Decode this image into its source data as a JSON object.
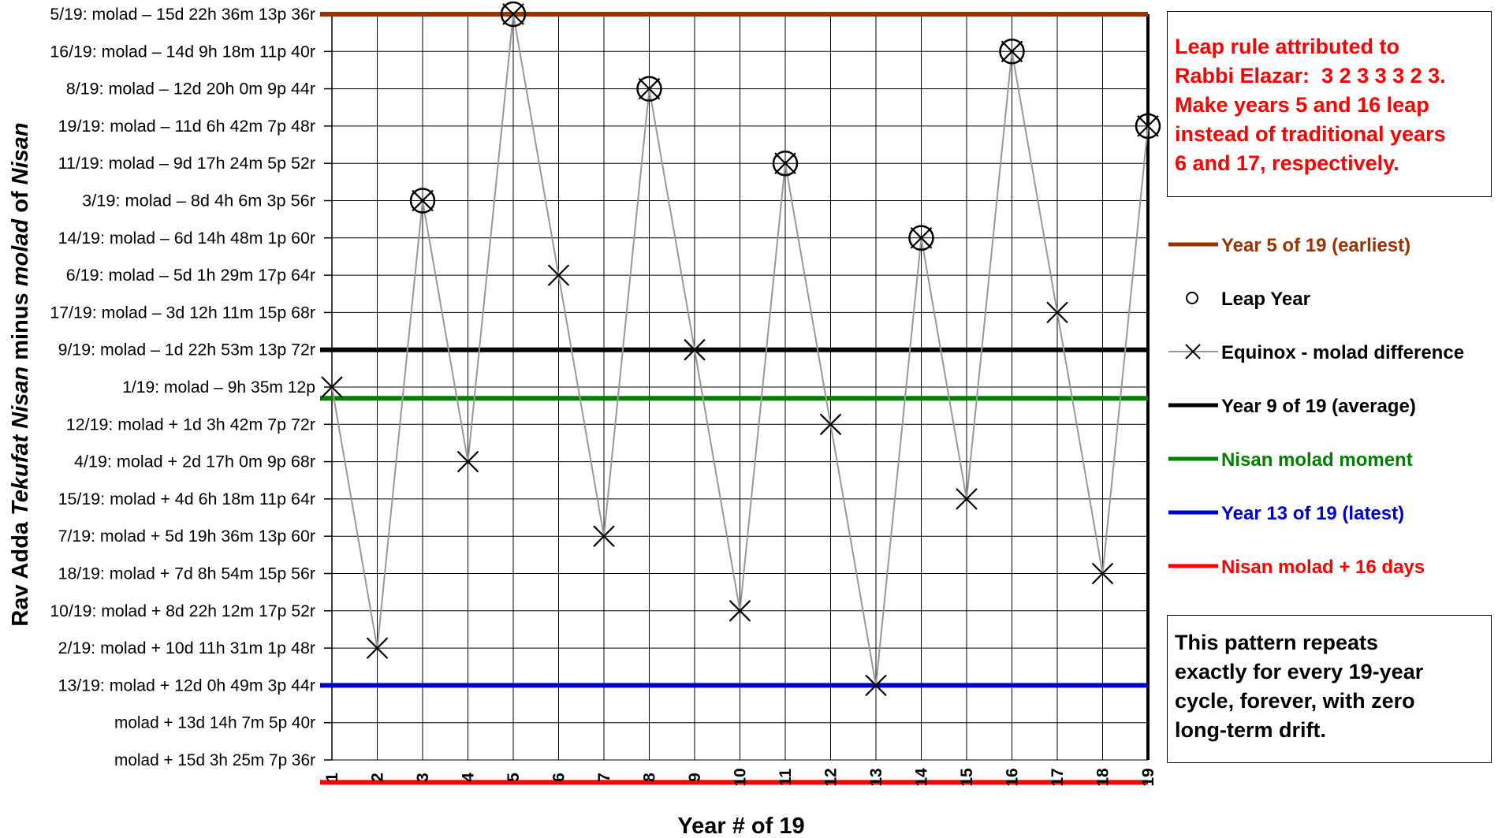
{
  "chart_data": {
    "type": "line",
    "title": "",
    "xlabel": "Year # of 19",
    "ylabel_parts": [
      "Rav Adda ",
      "Tekufat Nisan",
      " minus ",
      "molad",
      " of ",
      "Nisan"
    ],
    "x": [
      1,
      2,
      3,
      4,
      5,
      6,
      7,
      8,
      9,
      10,
      11,
      12,
      13,
      14,
      15,
      16,
      17,
      18,
      19
    ],
    "y_order": "reversed",
    "ylim": [
      0,
      20
    ],
    "y_ticks": [
      {
        "v": 0,
        "label": "5/19: molad – 15d 22h 36m 13p 36r"
      },
      {
        "v": 1,
        "label": "16/19: molad – 14d 9h 18m 11p 40r"
      },
      {
        "v": 2,
        "label": "8/19: molad – 12d 20h 0m 9p 44r"
      },
      {
        "v": 3,
        "label": "19/19: molad – 11d 6h 42m 7p 48r"
      },
      {
        "v": 4,
        "label": "11/19: molad – 9d 17h 24m 5p 52r"
      },
      {
        "v": 5,
        "label": "3/19: molad – 8d 4h 6m 3p 56r"
      },
      {
        "v": 6,
        "label": "14/19: molad – 6d 14h 48m 1p 60r"
      },
      {
        "v": 7,
        "label": "6/19: molad – 5d 1h 29m 17p 64r"
      },
      {
        "v": 8,
        "label": "17/19: molad – 3d 12h 11m 15p 68r"
      },
      {
        "v": 9,
        "label": "9/19: molad – 1d 22h 53m 13p 72r"
      },
      {
        "v": 10,
        "label": "1/19: molad – 9h 35m 12p"
      },
      {
        "v": 11,
        "label": "12/19: molad + 1d 3h 42m 7p 72r"
      },
      {
        "v": 12,
        "label": "4/19: molad + 2d 17h 0m 9p 68r"
      },
      {
        "v": 13,
        "label": "15/19: molad + 4d 6h 18m 11p 64r"
      },
      {
        "v": 14,
        "label": "7/19: molad + 5d 19h 36m 13p 60r"
      },
      {
        "v": 15,
        "label": "18/19: molad + 7d 8h 54m 15p 56r"
      },
      {
        "v": 16,
        "label": "10/19: molad + 8d 22h 12m 17p 52r"
      },
      {
        "v": 17,
        "label": "2/19: molad + 10d 11h 31m 1p 48r"
      },
      {
        "v": 18,
        "label": "13/19: molad + 12d 0h 49m 3p 44r"
      },
      {
        "v": 19,
        "label": "molad + 13d 14h 7m 5p 40r"
      },
      {
        "v": 20,
        "label": "molad + 15d 3h 25m 7p 36r"
      }
    ],
    "series": [
      {
        "name": "Equinox - molad difference",
        "color": "#999999",
        "marker": "x",
        "values": [
          10,
          17,
          5,
          12,
          0,
          7,
          14,
          2,
          9,
          16,
          4,
          11,
          18,
          6,
          13,
          1,
          8,
          15,
          3
        ]
      }
    ],
    "leap_years": [
      3,
      5,
      8,
      11,
      14,
      16,
      19
    ],
    "reference_lines": [
      {
        "name": "Year 5 of 19 (earliest)",
        "y": 0,
        "color": "#993300"
      },
      {
        "name": "Year 9 of 19 (average)",
        "y": 9,
        "color": "#000000"
      },
      {
        "name": "Nisan molad moment",
        "y": 10.3,
        "color": "#008000"
      },
      {
        "name": "Year 13 of 19 (latest)",
        "y": 18,
        "color": "#0000cc"
      },
      {
        "name": "Nisan molad + 16 days",
        "y": 20.6,
        "color": "#ff0000"
      }
    ],
    "legend": {
      "placement": "right",
      "entries": [
        {
          "label": "Year 5 of 19 (earliest)",
          "kind": "line",
          "color": "#993300"
        },
        {
          "label": "Leap Year",
          "kind": "circle",
          "color": "#000000"
        },
        {
          "label": "Equinox - molad difference",
          "kind": "line-x",
          "color": "#999999"
        },
        {
          "label": "Year 9 of 19 (average)",
          "kind": "line",
          "color": "#000000"
        },
        {
          "label": "Nisan molad moment",
          "kind": "line",
          "color": "#008000"
        },
        {
          "label": "Year 13 of 19 (latest)",
          "kind": "line",
          "color": "#0000cc"
        },
        {
          "label": "Nisan molad + 16 days",
          "kind": "line",
          "color": "#ff0000"
        }
      ]
    },
    "grid": true,
    "annotations": [
      {
        "id": "note",
        "color": "#ff0000",
        "lines": [
          "Leap rule attributed to",
          "Rabbi Elazar:  3 2 3 3 3 2 3.",
          "Make years 5 and 16 leap",
          "instead of traditional years",
          "6 and 17, respectively."
        ]
      },
      {
        "id": "pattern",
        "color": "#000000",
        "lines": [
          "This pattern repeats",
          "exactly for every 19-year",
          "cycle, forever, with zero",
          "long-term drift."
        ]
      }
    ]
  }
}
